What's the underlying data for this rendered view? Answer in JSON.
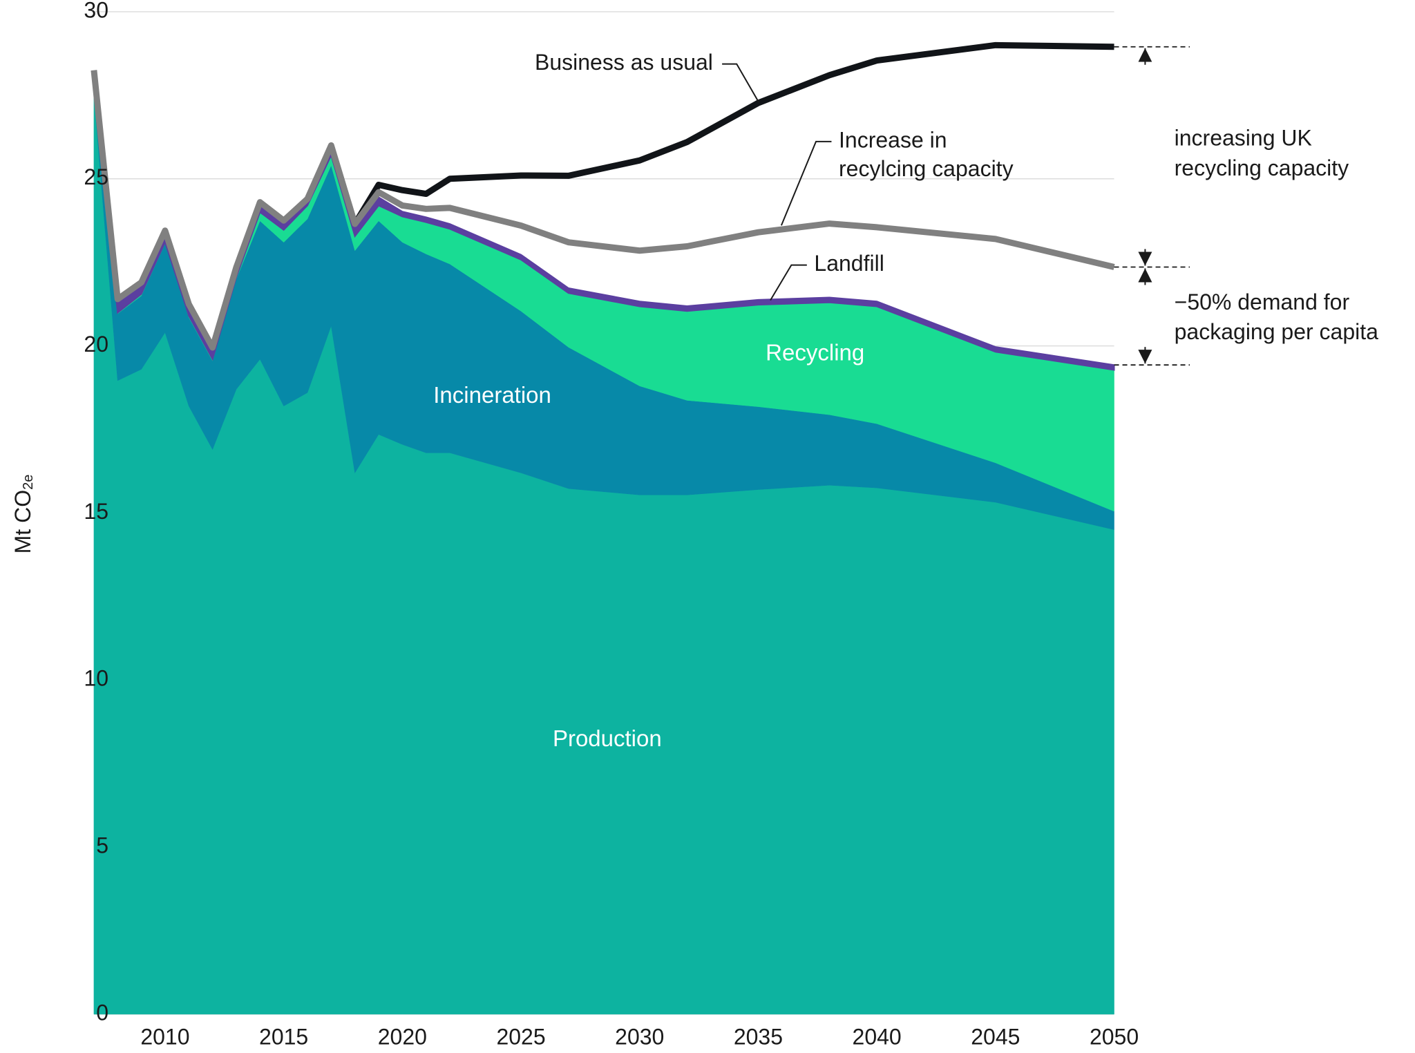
{
  "chart_data": {
    "type": "stacked-area",
    "ylabel": {
      "text": "Mt CO",
      "subscript": "2e"
    },
    "x": [
      2007,
      2008,
      2009,
      2010,
      2011,
      2012,
      2013,
      2014,
      2015,
      2016,
      2017,
      2018,
      2019,
      2020,
      2021,
      2022,
      2025,
      2027,
      2030,
      2032,
      2035,
      2038,
      2040,
      2045,
      2050
    ],
    "xlim": [
      2007,
      2050
    ],
    "xticks": [
      2010,
      2015,
      2020,
      2025,
      2030,
      2035,
      2040,
      2045,
      2050
    ],
    "ylim": [
      0,
      30
    ],
    "yticks": [
      0,
      5,
      10,
      15,
      20,
      25,
      30
    ],
    "grid": true,
    "series": [
      {
        "name": "Production",
        "color": "#0db3a0",
        "values": [
          27.5,
          18.96,
          19.3,
          20.4,
          18.2,
          16.9,
          18.7,
          19.6,
          18.2,
          18.6,
          20.6,
          16.2,
          17.35,
          17.05,
          16.8,
          16.8,
          16.2,
          15.73,
          15.54,
          15.54,
          15.7,
          15.83,
          15.75,
          15.32,
          14.5
        ]
      },
      {
        "name": "Incineration",
        "color": "#0789a8",
        "values": [
          0.3,
          2.0,
          2.2,
          2.66,
          2.65,
          2.65,
          3.3,
          4.14,
          4.9,
          5.2,
          4.8,
          6.65,
          6.39,
          6.05,
          5.95,
          5.65,
          4.84,
          4.23,
          3.26,
          2.83,
          2.48,
          2.11,
          1.92,
          1.18,
          0.55
        ]
      },
      {
        "name": "Recycling",
        "color": "#19dc93",
        "values": [
          0.1,
          0.03,
          0.05,
          0.04,
          0.05,
          0.05,
          0.05,
          0.26,
          0.37,
          0.4,
          0.3,
          0.43,
          0.46,
          0.77,
          0.95,
          1.05,
          1.54,
          1.62,
          2.38,
          2.67,
          3.05,
          3.36,
          3.51,
          3.32,
          4.23
        ]
      },
      {
        "name": "Landfill",
        "color": "#5b3fa0",
        "values": [
          0.3,
          0.35,
          0.3,
          0.3,
          0.3,
          0.3,
          0.25,
          0.25,
          0.25,
          0.15,
          0.25,
          0.3,
          0.25,
          0.15,
          0.15,
          0.15,
          0.15,
          0.15,
          0.15,
          0.15,
          0.15,
          0.15,
          0.15,
          0.15,
          0.15
        ]
      }
    ],
    "lines": [
      {
        "name": "Business as usual",
        "color": "#111418",
        "values": [
          null,
          null,
          null,
          null,
          null,
          null,
          null,
          null,
          null,
          null,
          null,
          23.65,
          24.82,
          24.66,
          24.55,
          25.0,
          25.1,
          25.09,
          25.55,
          26.1,
          27.27,
          28.1,
          28.54,
          29.0,
          28.95
        ]
      },
      {
        "name_lines": [
          "Increase in",
          "recylcing capacity"
        ],
        "color": "#808080",
        "values": [
          28.25,
          21.4,
          21.9,
          23.45,
          21.25,
          19.95,
          22.35,
          24.3,
          23.75,
          24.4,
          26.0,
          23.65,
          24.6,
          24.2,
          24.1,
          24.13,
          23.6,
          23.1,
          22.85,
          22.98,
          23.4,
          23.66,
          23.55,
          23.2,
          22.36
        ]
      }
    ],
    "annotations": [
      {
        "lines": [
          "increasing UK",
          "recycling capacity"
        ]
      },
      {
        "lines": [
          "−50% demand for",
          "packaging per capita"
        ]
      }
    ]
  }
}
